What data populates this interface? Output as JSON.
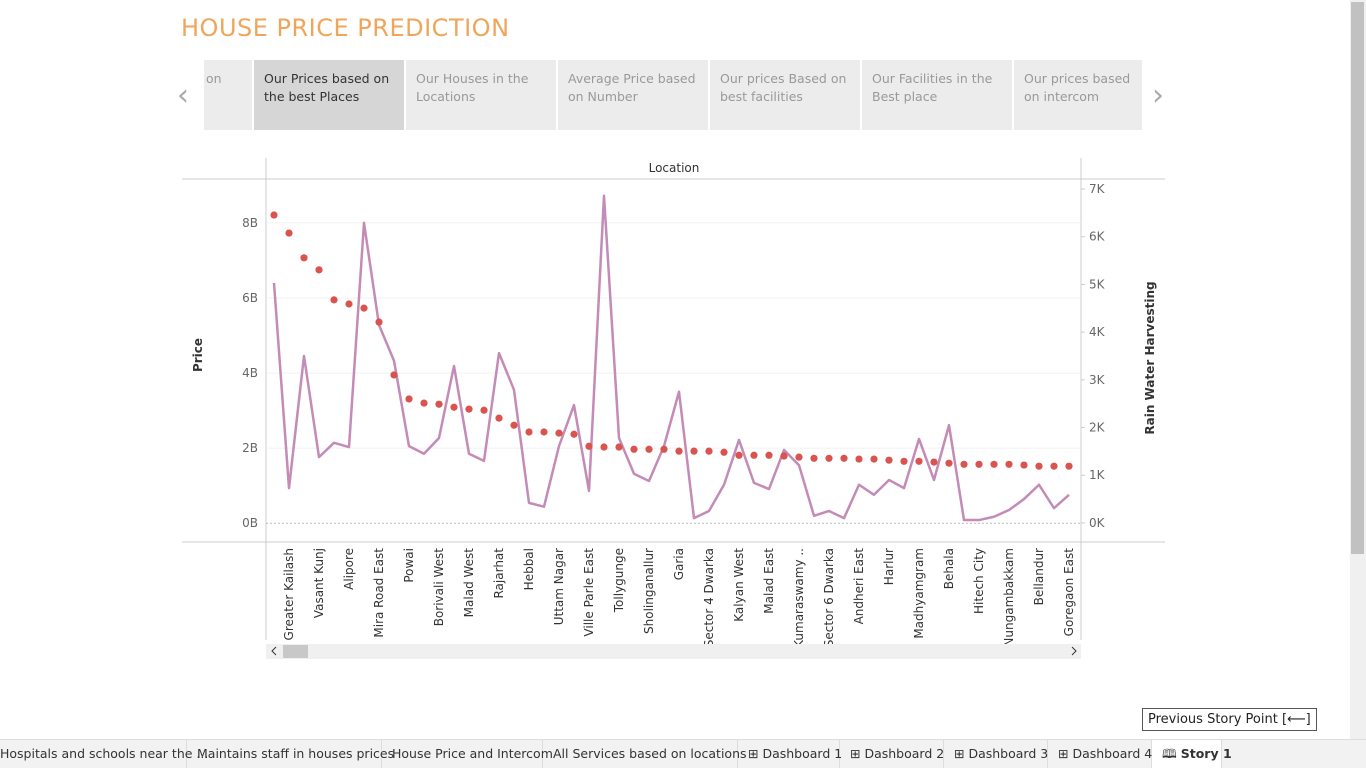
{
  "header": {
    "title": "HOUSE PRICE PREDICTION"
  },
  "story_points": [
    "on",
    "Our Prices based on the best Places",
    "Our Houses in the Locations",
    "Average Price based on Number",
    "Our prices Based on best facilities",
    "Our Facilities in the Best place",
    "Our prices based on intercom"
  ],
  "tabs": [
    "Hospitals and schools near the ...",
    "Maintains staff in houses prices",
    "House Price and Intercom",
    "All Services based on locations",
    "Dashboard 1",
    "Dashboard 2",
    "Dashboard 3",
    "Dashboard 4",
    "Story 1"
  ],
  "tooltip": "Previous Story Point [⟵]",
  "chart_data": {
    "type": "dual",
    "x_label": "Location",
    "y_label": "Price",
    "y2_label": "Rain Water Harvesting",
    "categories": [
      null,
      "Greater Kailash",
      null,
      "Vasant Kunj",
      null,
      "Alipore",
      null,
      "Mira Road East",
      null,
      "Powai",
      null,
      "Borivali West",
      null,
      "Malad West",
      null,
      "Rajarhat",
      null,
      "Hebbal",
      null,
      "Uttam Nagar",
      null,
      "Ville Parle East",
      null,
      "Tollygunge",
      null,
      "Sholinganallur",
      null,
      "Garia",
      null,
      "Sector 4 Dwarka",
      null,
      "Kalyan West",
      null,
      "Malad East",
      null,
      "Kumaraswamy ..",
      null,
      "Sector 6 Dwarka",
      null,
      "Andheri East",
      null,
      "Harlur",
      null,
      "Madhyamgram",
      null,
      "Behala",
      null,
      "Hitech City",
      null,
      "Nungambakkam",
      null,
      "Bellandur",
      null,
      "Goregaon East"
    ],
    "series": [
      {
        "name": "Price",
        "kind": "scatter",
        "axis": "y",
        "color": "#d9534f",
        "values": [
          8210000000,
          7730000000,
          7070000000,
          6750000000,
          5950000000,
          5840000000,
          5730000000,
          5360000000,
          3950000000,
          3310000000,
          3200000000,
          3170000000,
          3090000000,
          3040000000,
          3010000000,
          2800000000,
          2610000000,
          2430000000,
          2430000000,
          2400000000,
          2370000000,
          2050000000,
          2030000000,
          2030000000,
          1970000000,
          1970000000,
          1970000000,
          1920000000,
          1920000000,
          1920000000,
          1890000000,
          1810000000,
          1810000000,
          1810000000,
          1790000000,
          1760000000,
          1730000000,
          1730000000,
          1730000000,
          1710000000,
          1710000000,
          1680000000,
          1650000000,
          1650000000,
          1630000000,
          1600000000,
          1570000000,
          1570000000,
          1570000000,
          1570000000,
          1550000000,
          1520000000,
          1520000000,
          1520000000
        ]
      },
      {
        "name": "Rain Water Harvesting",
        "kind": "line",
        "axis": "y2",
        "color": "#c48bb6",
        "values": [
          5030,
          730,
          3500,
          1380,
          1680,
          1590,
          6290,
          4150,
          3400,
          1610,
          1450,
          1780,
          3290,
          1450,
          1300,
          3560,
          2790,
          420,
          340,
          1610,
          2470,
          670,
          6860,
          1780,
          1030,
          880,
          1610,
          2750,
          100,
          250,
          800,
          1740,
          840,
          710,
          1530,
          1210,
          150,
          250,
          100,
          800,
          590,
          900,
          730,
          1760,
          900,
          2050,
          60,
          60,
          130,
          270,
          500,
          800,
          310,
          590
        ]
      }
    ],
    "ylim": [
      -500000000,
      9170000000
    ],
    "yticks": [
      {
        "value": 0,
        "label": "0B"
      },
      {
        "value": 2000000000,
        "label": "2B"
      },
      {
        "value": 4000000000,
        "label": "4B"
      },
      {
        "value": 6000000000,
        "label": "6B"
      },
      {
        "value": 8000000000,
        "label": "8B"
      }
    ],
    "y2lim": [
      -400,
      7210
    ],
    "y2ticks": [
      {
        "value": 0,
        "label": "0K"
      },
      {
        "value": 1000,
        "label": "1K"
      },
      {
        "value": 2000,
        "label": "2K"
      },
      {
        "value": 3000,
        "label": "3K"
      },
      {
        "value": 4000,
        "label": "4K"
      },
      {
        "value": 5000,
        "label": "5K"
      },
      {
        "value": 6000,
        "label": "6K"
      },
      {
        "value": 7000,
        "label": "7K"
      }
    ],
    "grid": true
  }
}
